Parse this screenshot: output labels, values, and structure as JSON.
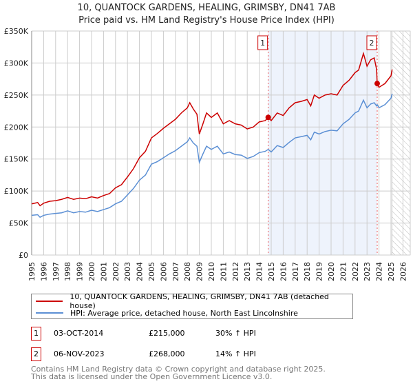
{
  "chart_data": {
    "type": "line",
    "title": "10, QUANTOCK GARDENS, HEALING, GRIMSBY, DN41 7AB",
    "subtitle": "Price paid vs. HM Land Registry's House Price Index (HPI)",
    "xlim": [
      1995,
      2026
    ],
    "ylim": [
      0,
      350000
    ],
    "x_ticks": [
      "1995",
      "1996",
      "1997",
      "1998",
      "1999",
      "2000",
      "2001",
      "2002",
      "2003",
      "2004",
      "2005",
      "2006",
      "2007",
      "2008",
      "2009",
      "2010",
      "2011",
      "2012",
      "2013",
      "2014",
      "2015",
      "2016",
      "2017",
      "2018",
      "2019",
      "2020",
      "2021",
      "2022",
      "2023",
      "2024",
      "2025",
      "2026"
    ],
    "y_ticks": [
      {
        "v": 0,
        "label": "£0"
      },
      {
        "v": 50000,
        "label": "£50K"
      },
      {
        "v": 100000,
        "label": "£100K"
      },
      {
        "v": 150000,
        "label": "£150K"
      },
      {
        "v": 200000,
        "label": "£200K"
      },
      {
        "v": 250000,
        "label": "£250K"
      },
      {
        "v": 300000,
        "label": "£300K"
      },
      {
        "v": 350000,
        "label": "£350K"
      }
    ],
    "grid": true,
    "series": [
      {
        "name": "10, QUANTOCK GARDENS, HEALING, GRIMSBY, DN41 7AB (detached house)",
        "color": "#cc0000",
        "x": [
          1995,
          1995.5,
          1995.7,
          1996,
          1996.5,
          1997,
          1997.5,
          1998,
          1998.5,
          1999,
          1999.5,
          2000,
          2000.5,
          2001,
          2001.5,
          2002,
          2002.5,
          2003,
          2003.5,
          2004,
          2004.5,
          2005,
          2005.5,
          2006,
          2006.5,
          2007,
          2007.5,
          2008,
          2008.2,
          2008.5,
          2008.8,
          2009,
          2009.3,
          2009.6,
          2010,
          2010.5,
          2011,
          2011.5,
          2012,
          2012.5,
          2013,
          2013.5,
          2014,
          2014.5,
          2014.75,
          2015,
          2015.5,
          2016,
          2016.5,
          2017,
          2017.5,
          2018,
          2018.3,
          2018.6,
          2019,
          2019.5,
          2020,
          2020.5,
          2021,
          2021.5,
          2022,
          2022.3,
          2022.7,
          2023,
          2023.3,
          2023.6,
          2023.8,
          2023.85,
          2024,
          2024.5,
          2025,
          2025.1
        ],
        "y": [
          80000,
          82000,
          77000,
          81000,
          84000,
          85000,
          87000,
          90000,
          87000,
          89000,
          88000,
          91000,
          89000,
          93000,
          96000,
          105000,
          110000,
          122000,
          135000,
          152000,
          162000,
          183000,
          190000,
          198000,
          205000,
          212000,
          222000,
          230000,
          238000,
          228000,
          220000,
          189000,
          205000,
          222000,
          215000,
          222000,
          205000,
          210000,
          205000,
          203000,
          197000,
          200000,
          208000,
          210000,
          215000,
          210000,
          222000,
          218000,
          230000,
          238000,
          240000,
          243000,
          233000,
          250000,
          245000,
          250000,
          252000,
          250000,
          265000,
          273000,
          285000,
          289000,
          315000,
          295000,
          305000,
          308000,
          290000,
          268000,
          262000,
          268000,
          280000,
          290000
        ]
      },
      {
        "name": "HPI: Average price, detached house, North East Lincolnshire",
        "color": "#5b8fd4",
        "x": [
          1995,
          1995.5,
          1995.7,
          1996,
          1996.5,
          1997,
          1997.5,
          1998,
          1998.5,
          1999,
          1999.5,
          2000,
          2000.5,
          2001,
          2001.5,
          2002,
          2002.5,
          2003,
          2003.5,
          2004,
          2004.5,
          2005,
          2005.5,
          2006,
          2006.5,
          2007,
          2007.5,
          2008,
          2008.2,
          2008.5,
          2008.8,
          2009,
          2009.3,
          2009.6,
          2010,
          2010.5,
          2011,
          2011.5,
          2012,
          2012.5,
          2013,
          2013.5,
          2014,
          2014.5,
          2014.75,
          2015,
          2015.5,
          2016,
          2016.5,
          2017,
          2017.5,
          2018,
          2018.3,
          2018.6,
          2019,
          2019.5,
          2020,
          2020.5,
          2021,
          2021.5,
          2022,
          2022.3,
          2022.7,
          2023,
          2023.3,
          2023.6,
          2023.8,
          2023.85,
          2024,
          2024.5,
          2025,
          2025.1
        ],
        "y": [
          62000,
          63000,
          59000,
          62000,
          64000,
          65000,
          66000,
          69000,
          66000,
          68000,
          67000,
          70000,
          68000,
          71000,
          74000,
          80000,
          84000,
          94000,
          104000,
          117000,
          125000,
          142000,
          146000,
          152000,
          158000,
          163000,
          170000,
          177000,
          183000,
          175000,
          170000,
          145000,
          158000,
          170000,
          165000,
          170000,
          158000,
          161000,
          157000,
          156000,
          151000,
          154000,
          160000,
          162000,
          165000,
          161000,
          171000,
          168000,
          176000,
          183000,
          185000,
          187000,
          180000,
          192000,
          189000,
          193000,
          195000,
          194000,
          205000,
          212000,
          222000,
          225000,
          242000,
          230000,
          236000,
          238000,
          233000,
          235000,
          230000,
          235000,
          245000,
          252000
        ]
      }
    ],
    "sales": [
      {
        "label": "1",
        "x": 2014.75,
        "y": 215000
      },
      {
        "label": "2",
        "x": 2023.85,
        "y": 268000
      }
    ],
    "shaded_range": [
      2014.75,
      2023.85
    ],
    "hatched_from": 2025.1
  },
  "legend": {
    "red": "10, QUANTOCK GARDENS, HEALING, GRIMSBY, DN41 7AB (detached house)",
    "blue": "HPI: Average price, detached house, North East Lincolnshire"
  },
  "transactions": [
    {
      "num": "1",
      "date": "03-OCT-2014",
      "price": "£215,000",
      "delta": "30% ↑ HPI"
    },
    {
      "num": "2",
      "date": "06-NOV-2023",
      "price": "£268,000",
      "delta": "14% ↑ HPI"
    }
  ],
  "footer": {
    "line1": "Contains HM Land Registry data © Crown copyright and database right 2025.",
    "line2": "This data is licensed under the Open Government Licence v3.0."
  }
}
